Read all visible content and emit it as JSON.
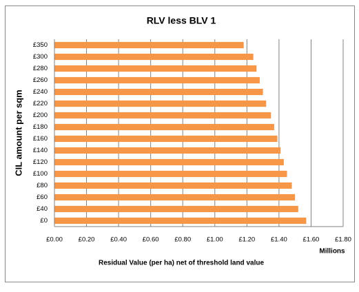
{
  "chart_data": {
    "type": "hbar",
    "title": "RLV less BLV 1",
    "x_label": "Residual Value (per ha) net of threshold land value",
    "x_unit": "Millions",
    "y_label": "CIL amount per sqm",
    "categories": [
      "£0",
      "£40",
      "£60",
      "£80",
      "£100",
      "£120",
      "£140",
      "£160",
      "£180",
      "£200",
      "£220",
      "£240",
      "£260",
      "£280",
      "£300",
      "£350"
    ],
    "values": [
      1.57,
      1.52,
      1.5,
      1.48,
      1.45,
      1.43,
      1.41,
      1.39,
      1.37,
      1.35,
      1.32,
      1.3,
      1.28,
      1.26,
      1.24,
      1.18
    ],
    "color": "#f79646",
    "xlim": [
      0,
      1.8
    ],
    "xticks": [
      {
        "value": 0,
        "label": "£0.00"
      },
      {
        "value": 0.2,
        "label": "£0.20"
      },
      {
        "value": 0.4,
        "label": "£0.40"
      },
      {
        "value": 0.6,
        "label": "£0.60"
      },
      {
        "value": 0.8,
        "label": "£0.80"
      },
      {
        "value": 1.0,
        "label": "£1.00"
      },
      {
        "value": 1.2,
        "label": "£1.20"
      },
      {
        "value": 1.4,
        "label": "£1.40"
      },
      {
        "value": 1.6,
        "label": "£1.60"
      },
      {
        "value": 1.8,
        "label": "£1.80"
      }
    ],
    "grid": true
  }
}
